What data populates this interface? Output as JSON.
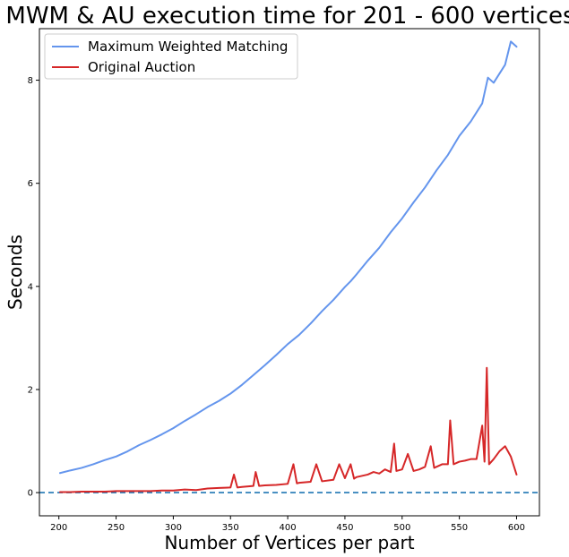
{
  "chart_data": {
    "type": "line",
    "title": "MWM & AU execution time for 201 - 600 vertices",
    "xlabel": "Number of Vertices per part",
    "ylabel": "Seconds",
    "xlim": [
      183,
      620
    ],
    "ylim": [
      -0.45,
      9.0
    ],
    "xticks": [
      200,
      250,
      300,
      350,
      400,
      450,
      500,
      550,
      600
    ],
    "yticks": [
      0,
      2,
      4,
      6,
      8
    ],
    "grid": false,
    "legend": "upper-left",
    "reference_line": {
      "y": 0,
      "style": "dashed",
      "color": "#1f77b4"
    },
    "series": [
      {
        "name": "Maximum Weighted Matching",
        "color": "#6495ed",
        "x": [
          201,
          210,
          220,
          230,
          240,
          250,
          260,
          270,
          280,
          290,
          300,
          310,
          320,
          330,
          340,
          350,
          360,
          370,
          380,
          390,
          400,
          410,
          420,
          430,
          440,
          450,
          455,
          460,
          470,
          480,
          490,
          500,
          510,
          520,
          530,
          540,
          550,
          560,
          570,
          575,
          580,
          590,
          595,
          600
        ],
        "y": [
          0.38,
          0.43,
          0.48,
          0.55,
          0.63,
          0.7,
          0.8,
          0.92,
          1.02,
          1.13,
          1.25,
          1.39,
          1.52,
          1.66,
          1.78,
          1.92,
          2.09,
          2.28,
          2.47,
          2.67,
          2.88,
          3.06,
          3.28,
          3.52,
          3.74,
          3.99,
          4.1,
          4.23,
          4.5,
          4.75,
          5.05,
          5.32,
          5.63,
          5.92,
          6.25,
          6.55,
          6.92,
          7.2,
          7.55,
          8.05,
          7.95,
          8.3,
          8.75,
          8.65
        ]
      },
      {
        "name": "Original Auction",
        "color": "#d62728",
        "x": [
          201,
          210,
          220,
          230,
          240,
          250,
          260,
          270,
          280,
          290,
          300,
          310,
          320,
          330,
          340,
          350,
          353,
          356,
          360,
          370,
          372,
          375,
          380,
          390,
          400,
          405,
          408,
          410,
          420,
          425,
          430,
          440,
          445,
          450,
          455,
          458,
          460,
          470,
          475,
          480,
          485,
          490,
          493,
          495,
          500,
          505,
          510,
          515,
          520,
          525,
          528,
          530,
          535,
          540,
          542,
          545,
          550,
          555,
          560,
          565,
          570,
          572,
          574,
          576,
          580,
          585,
          590,
          595,
          600
        ],
        "y": [
          0.01,
          0.01,
          0.02,
          0.02,
          0.02,
          0.03,
          0.03,
          0.03,
          0.03,
          0.04,
          0.04,
          0.06,
          0.05,
          0.08,
          0.09,
          0.1,
          0.35,
          0.1,
          0.11,
          0.13,
          0.4,
          0.13,
          0.14,
          0.15,
          0.17,
          0.55,
          0.18,
          0.19,
          0.21,
          0.55,
          0.22,
          0.25,
          0.55,
          0.28,
          0.55,
          0.27,
          0.3,
          0.35,
          0.4,
          0.37,
          0.45,
          0.4,
          0.95,
          0.42,
          0.45,
          0.75,
          0.42,
          0.45,
          0.5,
          0.9,
          0.48,
          0.5,
          0.55,
          0.55,
          1.4,
          0.55,
          0.6,
          0.62,
          0.65,
          0.65,
          1.3,
          0.6,
          2.42,
          0.55,
          0.65,
          0.8,
          0.9,
          0.7,
          0.35
        ]
      }
    ]
  }
}
